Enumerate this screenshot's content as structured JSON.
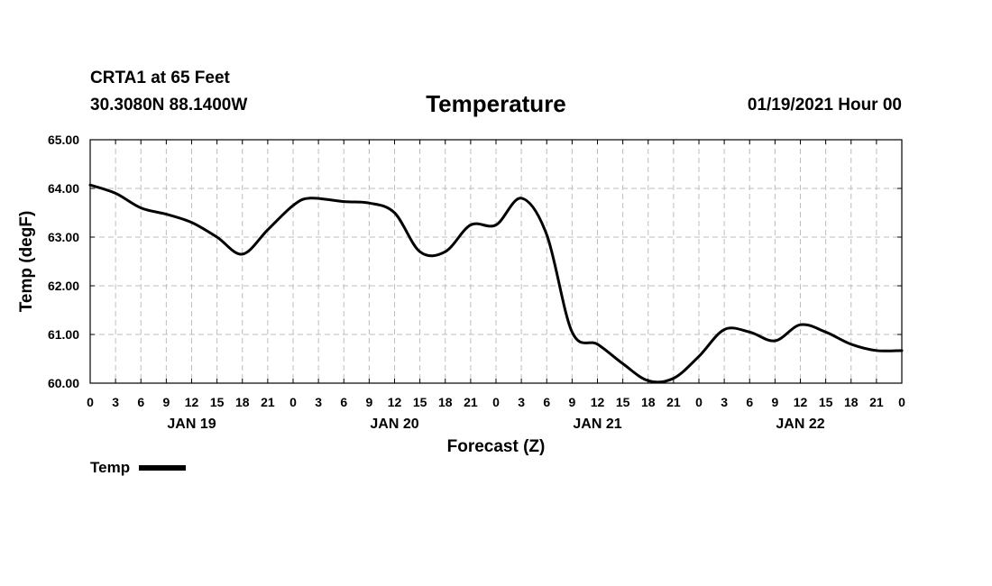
{
  "header": {
    "station": "CRTA1 at 65 Feet",
    "coords": "30.3080N 88.1400W",
    "title": "Temperature",
    "runtime": "01/19/2021 Hour 00"
  },
  "chart_data": {
    "type": "line",
    "title": "Temperature",
    "xlabel": "Forecast (Z)",
    "ylabel": "Temp (degF)",
    "ylim": [
      60.0,
      65.0
    ],
    "xlim": [
      0,
      96
    ],
    "yticks": [
      "60.00",
      "61.00",
      "62.00",
      "63.00",
      "64.00",
      "65.00"
    ],
    "xtick_labels": [
      "0",
      "3",
      "6",
      "9",
      "12",
      "15",
      "18",
      "21",
      "0",
      "3",
      "6",
      "9",
      "12",
      "15",
      "18",
      "21",
      "0",
      "3",
      "6",
      "9",
      "12",
      "15",
      "18",
      "21",
      "0",
      "3",
      "6",
      "9",
      "12",
      "15",
      "18",
      "21",
      "0"
    ],
    "day_labels": [
      {
        "label": "JAN 19",
        "hour": 12
      },
      {
        "label": "JAN 20",
        "hour": 36
      },
      {
        "label": "JAN 21",
        "hour": 60
      },
      {
        "label": "JAN 22",
        "hour": 84
      }
    ],
    "grid": true,
    "legend": "bottom-left",
    "series": [
      {
        "name": "Temp",
        "color": "#000000",
        "x": [
          0,
          3,
          6,
          9,
          12,
          15,
          18,
          21,
          24,
          26,
          30,
          33,
          36,
          39,
          42,
          45,
          48,
          51,
          54,
          57,
          60,
          63,
          66,
          69,
          72,
          75,
          78,
          81,
          84,
          87,
          90,
          93,
          96
        ],
        "y": [
          64.07,
          63.9,
          63.6,
          63.47,
          63.3,
          63.0,
          62.65,
          63.15,
          63.65,
          63.8,
          63.73,
          63.7,
          63.5,
          62.7,
          62.7,
          63.25,
          63.25,
          63.8,
          63.05,
          61.05,
          60.8,
          60.4,
          60.05,
          60.1,
          60.55,
          61.1,
          61.05,
          60.87,
          61.2,
          61.05,
          60.8,
          60.67,
          60.67
        ]
      }
    ]
  },
  "legend": {
    "label": "Temp"
  }
}
